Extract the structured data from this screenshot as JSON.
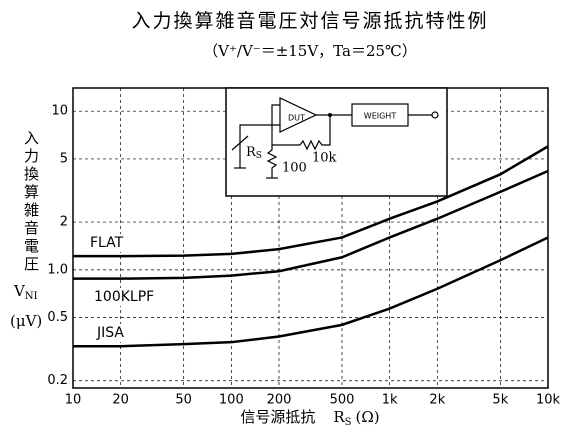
{
  "chart_data": {
    "type": "line",
    "title": "入力換算雑音電圧対信号源抵抗特性例",
    "subtitle": "（V⁺/V⁻＝±15V，Ta＝25℃）",
    "y_label": {
      "text": "入力換算雑音電圧",
      "symbol": "V",
      "subscript": "NI",
      "unit": "(μV)"
    },
    "x_label": {
      "text": "信号源抵抗",
      "symbol": "R",
      "subscript": "S",
      "unit": "(Ω)"
    },
    "x": [
      10,
      20,
      50,
      100,
      200,
      500,
      1000,
      2000,
      5000,
      10000
    ],
    "series": [
      {
        "name": "FLAT",
        "color": "#000000",
        "values": [
          1.22,
          1.22,
          1.23,
          1.26,
          1.35,
          1.6,
          2.1,
          2.7,
          4.0,
          6.0
        ]
      },
      {
        "name": "100KLPF",
        "color": "#000000",
        "values": [
          0.88,
          0.88,
          0.89,
          0.92,
          0.98,
          1.2,
          1.6,
          2.1,
          3.1,
          4.2
        ]
      },
      {
        "name": "JISA",
        "color": "#000000",
        "values": [
          0.33,
          0.33,
          0.34,
          0.35,
          0.38,
          0.45,
          0.57,
          0.76,
          1.15,
          1.6
        ]
      }
    ],
    "xlim": [
      10,
      10000
    ],
    "ylim": [
      0.18,
      14
    ],
    "xticks": [
      10,
      20,
      50,
      100,
      200,
      500,
      {
        "value": 1000,
        "label": "1k"
      },
      {
        "value": 2000,
        "label": "2k"
      },
      {
        "value": 5000,
        "label": "5k"
      },
      {
        "value": 10000,
        "label": "10k"
      }
    ],
    "yticks": [
      0.2,
      0.5,
      {
        "value": 1,
        "label": "1.0"
      },
      2,
      5,
      10
    ],
    "log_x": true,
    "log_y": true,
    "grid": true,
    "inset": {
      "dut": "DUT",
      "weight": "WEIGHT",
      "rs": "R",
      "rs_sub": "S",
      "r1": "100",
      "r2": "10k"
    }
  }
}
